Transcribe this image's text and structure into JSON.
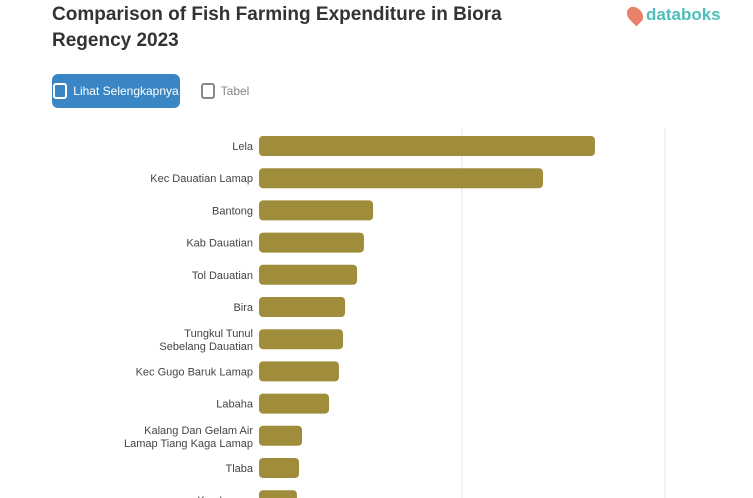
{
  "header": {
    "title": "Comparison of Fish Farming Expenditure in Biora Regency 2023",
    "logo": "databoks",
    "button_label": "Lihat Selengkapnya",
    "table_label": "Tabel"
  },
  "colors": {
    "bar": "#a08d3b",
    "button": "#3a86c4",
    "logo": "#4dbfb8"
  },
  "chart_data": {
    "type": "bar",
    "orientation": "horizontal",
    "grid": true,
    "categories": [
      "Lela",
      "Kec Dauatian Lamap",
      "Bantong",
      "Kab Dauatian",
      "Tol Dauatian",
      "Bira",
      "Tungkul Tunul Sebelang Dauatian",
      "Kec Gugo Baruk Lamap",
      "Labaha",
      "Kalang Dan Gelam Air Lamap Tiang Kaga Lamap",
      "Tlaba",
      "Kec Lamap"
    ],
    "values": [
      165.5,
      139.9,
      56.2,
      51.7,
      48.3,
      42.4,
      41.4,
      39.4,
      34.5,
      21.2,
      19.7,
      18.7
    ],
    "xlim": [
      0,
      200
    ]
  }
}
